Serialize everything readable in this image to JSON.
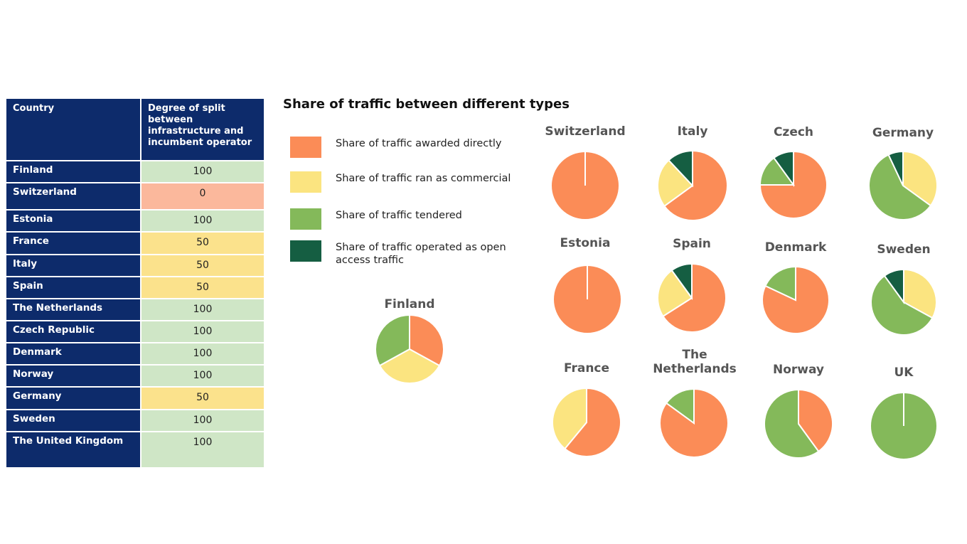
{
  "table": {
    "header_country": "Country",
    "header_degree": "Degree of split between infrastructure and incumbent operator",
    "rows": [
      {
        "country": "Finland",
        "value": "100",
        "color": "#cfe6c6"
      },
      {
        "country": "Switzerland",
        "value": "0",
        "color": "#fbb89c"
      },
      {
        "country": "Estonia",
        "value": "100",
        "color": "#cfe6c6"
      },
      {
        "country": "France",
        "value": "50",
        "color": "#fbe28c"
      },
      {
        "country": "Italy",
        "value": "50",
        "color": "#fbe28c"
      },
      {
        "country": "Spain",
        "value": "50",
        "color": "#fbe28c"
      },
      {
        "country": "The Netherlands",
        "value": "100",
        "color": "#cfe6c6"
      },
      {
        "country": "Czech Republic",
        "value": "100",
        "color": "#cfe6c6"
      },
      {
        "country": "Denmark",
        "value": "100",
        "color": "#cfe6c6"
      },
      {
        "country": "Norway",
        "value": "100",
        "color": "#cfe6c6"
      },
      {
        "country": "Germany",
        "value": "50",
        "color": "#fbe28c"
      },
      {
        "country": "Sweden",
        "value": "100",
        "color": "#cfe6c6"
      },
      {
        "country": "The United Kingdom",
        "value": "100",
        "color": "#cfe6c6"
      }
    ]
  },
  "chart_title": "Share of traffic between different types",
  "legend": [
    {
      "label": "Share of traffic awarded directly",
      "color": "#fb8c57"
    },
    {
      "label": "Share of traffic ran as commercial",
      "color": "#fbe480"
    },
    {
      "label": "Share of traffic tendered",
      "color": "#84b95a"
    },
    {
      "label": "Share of traffic operated as open access traffic",
      "color": "#155e42"
    }
  ],
  "chart_data": {
    "type": "pie",
    "series_order": [
      "Share of traffic awarded directly",
      "Share of traffic ran as commercial",
      "Share of traffic tendered",
      "Share of traffic operated as open access traffic"
    ],
    "pies": [
      {
        "label": "Finland",
        "values": [
          33,
          34,
          33,
          0
        ]
      },
      {
        "label": "Switzerland",
        "values": [
          100,
          0,
          0,
          0
        ]
      },
      {
        "label": "Italy",
        "values": [
          65,
          23,
          0,
          12
        ]
      },
      {
        "label": "Czech",
        "values": [
          75,
          0,
          15,
          10
        ]
      },
      {
        "label": "Germany",
        "values": [
          0,
          35,
          58,
          7
        ]
      },
      {
        "label": "Estonia",
        "values": [
          100,
          0,
          0,
          0
        ]
      },
      {
        "label": "Spain",
        "values": [
          66,
          24,
          0,
          10
        ]
      },
      {
        "label": "Denmark",
        "values": [
          82,
          0,
          18,
          0
        ]
      },
      {
        "label": "Sweden",
        "values": [
          0,
          33,
          57,
          10
        ]
      },
      {
        "label": "France",
        "values": [
          61,
          39,
          0,
          0
        ]
      },
      {
        "label": "The Netherlands",
        "values": [
          85,
          0,
          15,
          0
        ]
      },
      {
        "label": "Norway",
        "values": [
          40,
          0,
          60,
          0
        ]
      },
      {
        "label": "UK",
        "values": [
          0,
          0,
          100,
          0
        ]
      }
    ]
  }
}
